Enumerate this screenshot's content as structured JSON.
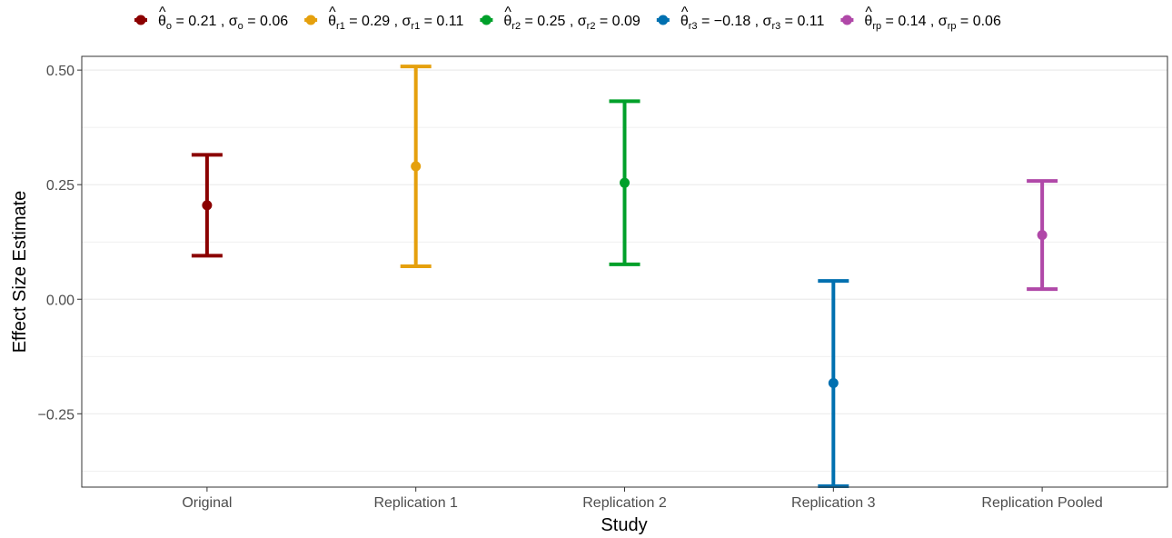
{
  "chart_data": {
    "type": "errorbar",
    "xlabel": "Study",
    "ylabel": "Effect Size Estimate",
    "categories": [
      "Original",
      "Replication 1",
      "Replication 2",
      "Replication 3",
      "Replication Pooled"
    ],
    "ylim": [
      -0.41,
      0.53
    ],
    "yticks": [
      0.5,
      0.25,
      0.0,
      -0.25
    ],
    "ytick_labels": [
      "0.50",
      "0.25",
      "0.00",
      "−0.25"
    ],
    "grid": true,
    "legend_position": "top",
    "series": [
      {
        "category": "Original",
        "estimate": 0.205,
        "lower": 0.095,
        "upper": 0.315,
        "color": "#8b0000",
        "legend": {
          "theta_sub": "o",
          "theta_val": "0.21",
          "sigma_sub": "o",
          "sigma_val": "0.06"
        }
      },
      {
        "category": "Replication 1",
        "estimate": 0.29,
        "lower": 0.072,
        "upper": 0.508,
        "color": "#e5a00d",
        "legend": {
          "theta_sub": "r1",
          "theta_val": "0.29",
          "sigma_sub": "r1",
          "sigma_val": "0.11"
        }
      },
      {
        "category": "Replication 2",
        "estimate": 0.254,
        "lower": 0.076,
        "upper": 0.432,
        "color": "#00a02a",
        "legend": {
          "theta_sub": "r2",
          "theta_val": "0.25",
          "sigma_sub": "r2",
          "sigma_val": "0.09"
        }
      },
      {
        "category": "Replication 3",
        "estimate": -0.183,
        "lower": -0.408,
        "upper": 0.04,
        "color": "#0070b0",
        "legend": {
          "theta_sub": "r3",
          "theta_val": "−0.18",
          "sigma_sub": "r3",
          "sigma_val": "0.11"
        }
      },
      {
        "category": "Replication Pooled",
        "estimate": 0.14,
        "lower": 0.022,
        "upper": 0.258,
        "color": "#b048a8",
        "legend": {
          "theta_sub": "rp",
          "theta_val": "0.14",
          "sigma_sub": "rp",
          "sigma_val": "0.06"
        }
      }
    ]
  }
}
